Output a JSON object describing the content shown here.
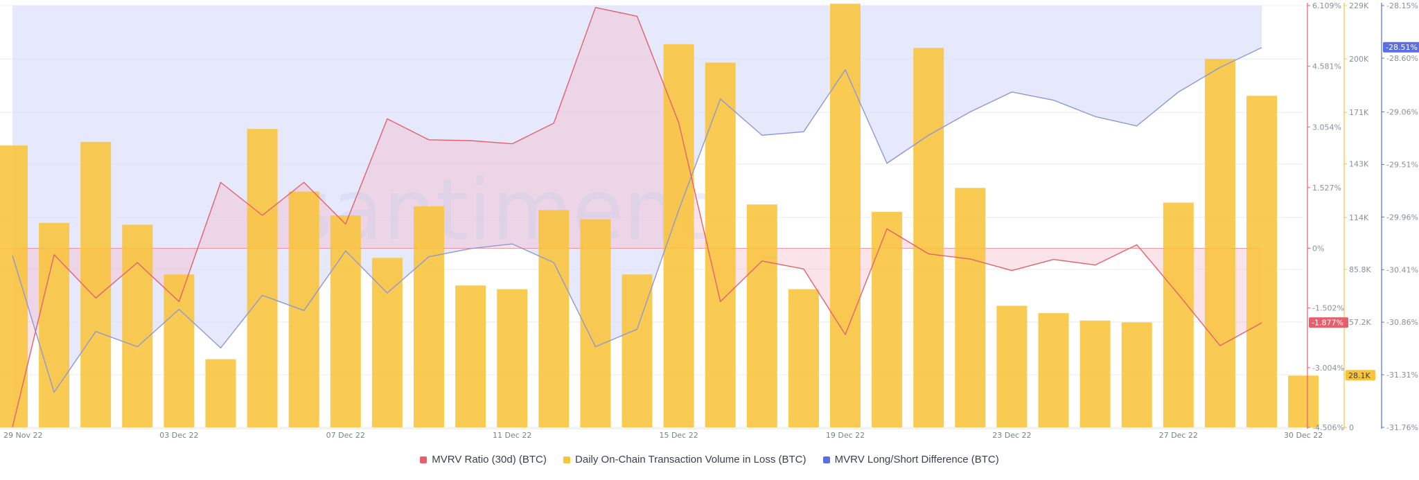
{
  "chart_data": {
    "type": "bar",
    "watermark": "santiment",
    "x": [
      "29 Nov 22",
      "30 Nov 22",
      "01 Dec 22",
      "02 Dec 22",
      "03 Dec 22",
      "04 Dec 22",
      "05 Dec 22",
      "06 Dec 22",
      "07 Dec 22",
      "08 Dec 22",
      "09 Dec 22",
      "10 Dec 22",
      "11 Dec 22",
      "12 Dec 22",
      "13 Dec 22",
      "14 Dec 22",
      "15 Dec 22",
      "16 Dec 22",
      "17 Dec 22",
      "18 Dec 22",
      "19 Dec 22",
      "20 Dec 22",
      "21 Dec 22",
      "22 Dec 22",
      "23 Dec 22",
      "24 Dec 22",
      "25 Dec 22",
      "26 Dec 22",
      "27 Dec 22",
      "28 Dec 22",
      "29 Dec 22",
      "30 Dec 22"
    ],
    "x_tick_labels": [
      "29 Nov 22",
      "03 Dec 22",
      "07 Dec 22",
      "11 Dec 22",
      "15 Dec 22",
      "19 Dec 22",
      "23 Dec 22",
      "27 Dec 22",
      "30 Dec 22"
    ],
    "x_tick_indices": [
      0,
      4,
      8,
      12,
      16,
      20,
      24,
      28,
      31
    ],
    "series": [
      {
        "name": "MVRV Ratio (30d) (BTC)",
        "kind": "line",
        "axis": "left",
        "color": "#e5606c",
        "values": [
          -4.5,
          -0.16,
          -1.25,
          -0.36,
          -1.34,
          1.66,
          0.83,
          1.66,
          0.61,
          3.26,
          2.73,
          2.71,
          2.63,
          3.15,
          6.06,
          5.84,
          3.16,
          -1.34,
          -0.32,
          -0.52,
          -2.17,
          0.49,
          -0.14,
          -0.27,
          -0.56,
          -0.28,
          -0.42,
          0.09,
          -1.16,
          -2.45,
          -1.877,
          null
        ]
      },
      {
        "name": "Daily On-Chain Transaction Volume in Loss (BTC)",
        "kind": "bar",
        "axis": "mid",
        "color": "#f9c43a",
        "values": [
          153000,
          111000,
          155000,
          110000,
          83000,
          37000,
          162000,
          128000,
          115000,
          92000,
          120000,
          77000,
          75000,
          118000,
          113000,
          83000,
          208000,
          198000,
          121000,
          75000,
          230000,
          117000,
          206000,
          130000,
          66000,
          62000,
          58000,
          57000,
          122000,
          200000,
          180000,
          28100
        ]
      },
      {
        "name": "MVRV Long/Short Difference (BTC)",
        "kind": "area",
        "axis": "right",
        "color": "#5b6fe0",
        "values": [
          -30.29,
          -31.46,
          -30.94,
          -31.07,
          -30.75,
          -31.08,
          -30.63,
          -30.76,
          -30.25,
          -30.61,
          -30.3,
          -30.23,
          -30.19,
          -30.35,
          -31.07,
          -30.92,
          -29.9,
          -28.95,
          -29.26,
          -29.23,
          -28.7,
          -29.5,
          -29.26,
          -29.06,
          -28.89,
          -28.96,
          -29.1,
          -29.18,
          -28.89,
          -28.68,
          -28.51,
          null
        ]
      }
    ],
    "axes": {
      "left": {
        "range": [
          -4.506,
          6.109
        ],
        "ticks": [
          "6.109%",
          "4.581%",
          "3.054%",
          "1.527%",
          "0%",
          "-1.502%",
          "-3.004%",
          "-4.506%"
        ],
        "tick_values": [
          6.109,
          4.581,
          3.054,
          1.527,
          0,
          -1.502,
          -3.004,
          -4.506
        ],
        "color": "#e5606c"
      },
      "mid": {
        "range": [
          0,
          229000
        ],
        "ticks": [
          "229K",
          "200K",
          "171K",
          "143K",
          "114K",
          "85.8K",
          "57.2K",
          "28.6K",
          "0"
        ],
        "tick_values": [
          229000,
          200000,
          171000,
          143000,
          114000,
          85800,
          57200,
          28600,
          0
        ],
        "color": "#f9c43a"
      },
      "right": {
        "range": [
          -31.76,
          -28.15
        ],
        "ticks": [
          "-28.15%",
          "-28.60%",
          "-29.06%",
          "-29.51%",
          "-29.96%",
          "-30.41%",
          "-30.86%",
          "-31.31%",
          "-31.76%"
        ],
        "tick_values": [
          -28.15,
          -28.6,
          -29.06,
          -29.51,
          -29.96,
          -30.41,
          -30.86,
          -31.31,
          -31.76
        ],
        "color": "#5b6fe0"
      }
    },
    "badges": [
      {
        "axis": "left",
        "label": "-1.877%",
        "value": -1.877,
        "bg": "#e5606c",
        "fg": "#ffffff"
      },
      {
        "axis": "mid",
        "label": "28.1K",
        "value": 28100,
        "bg": "#f9c43a",
        "fg": "#3b3f47"
      },
      {
        "axis": "right",
        "label": "-28.51%",
        "value": -28.51,
        "bg": "#5b6fe0",
        "fg": "#ffffff"
      }
    ],
    "grid": true,
    "legend_position": "bottom-center"
  },
  "legend": [
    {
      "label": "MVRV Ratio (30d) (BTC)",
      "color": "#e5606c"
    },
    {
      "label": "Daily On-Chain Transaction Volume in Loss (BTC)",
      "color": "#f9c43a"
    },
    {
      "label": "MVRV Long/Short Difference (BTC)",
      "color": "#5b6fe0"
    }
  ]
}
